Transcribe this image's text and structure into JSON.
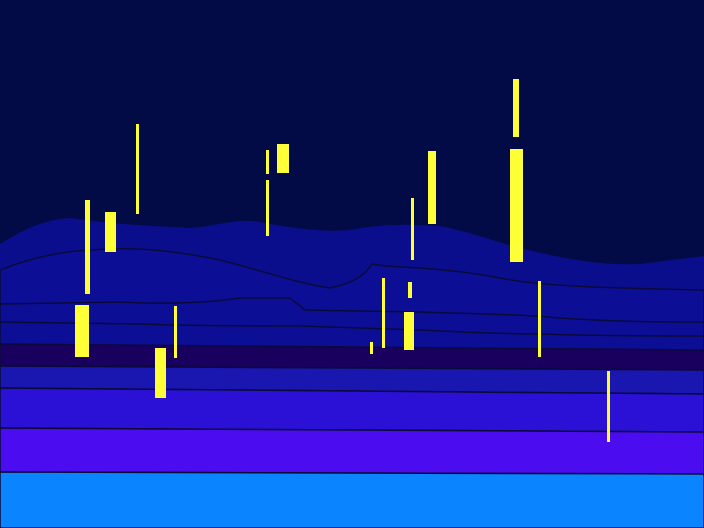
{
  "scene": {
    "description_visible_text": "",
    "palette": {
      "sky": "#020B45",
      "mountain_back": "#0B0E8C",
      "mountain_mid": "#0C0F96",
      "band_dark_purple": "#1A005E",
      "band_royal_blue": "#1A16B0",
      "band_indigo": "#2B10D6",
      "band_violet": "#4C0CF0",
      "ground_cyan_blue": "#0A84FF",
      "outline": "#0A0A3A",
      "yellow_pillar": "#FFFF38"
    }
  }
}
